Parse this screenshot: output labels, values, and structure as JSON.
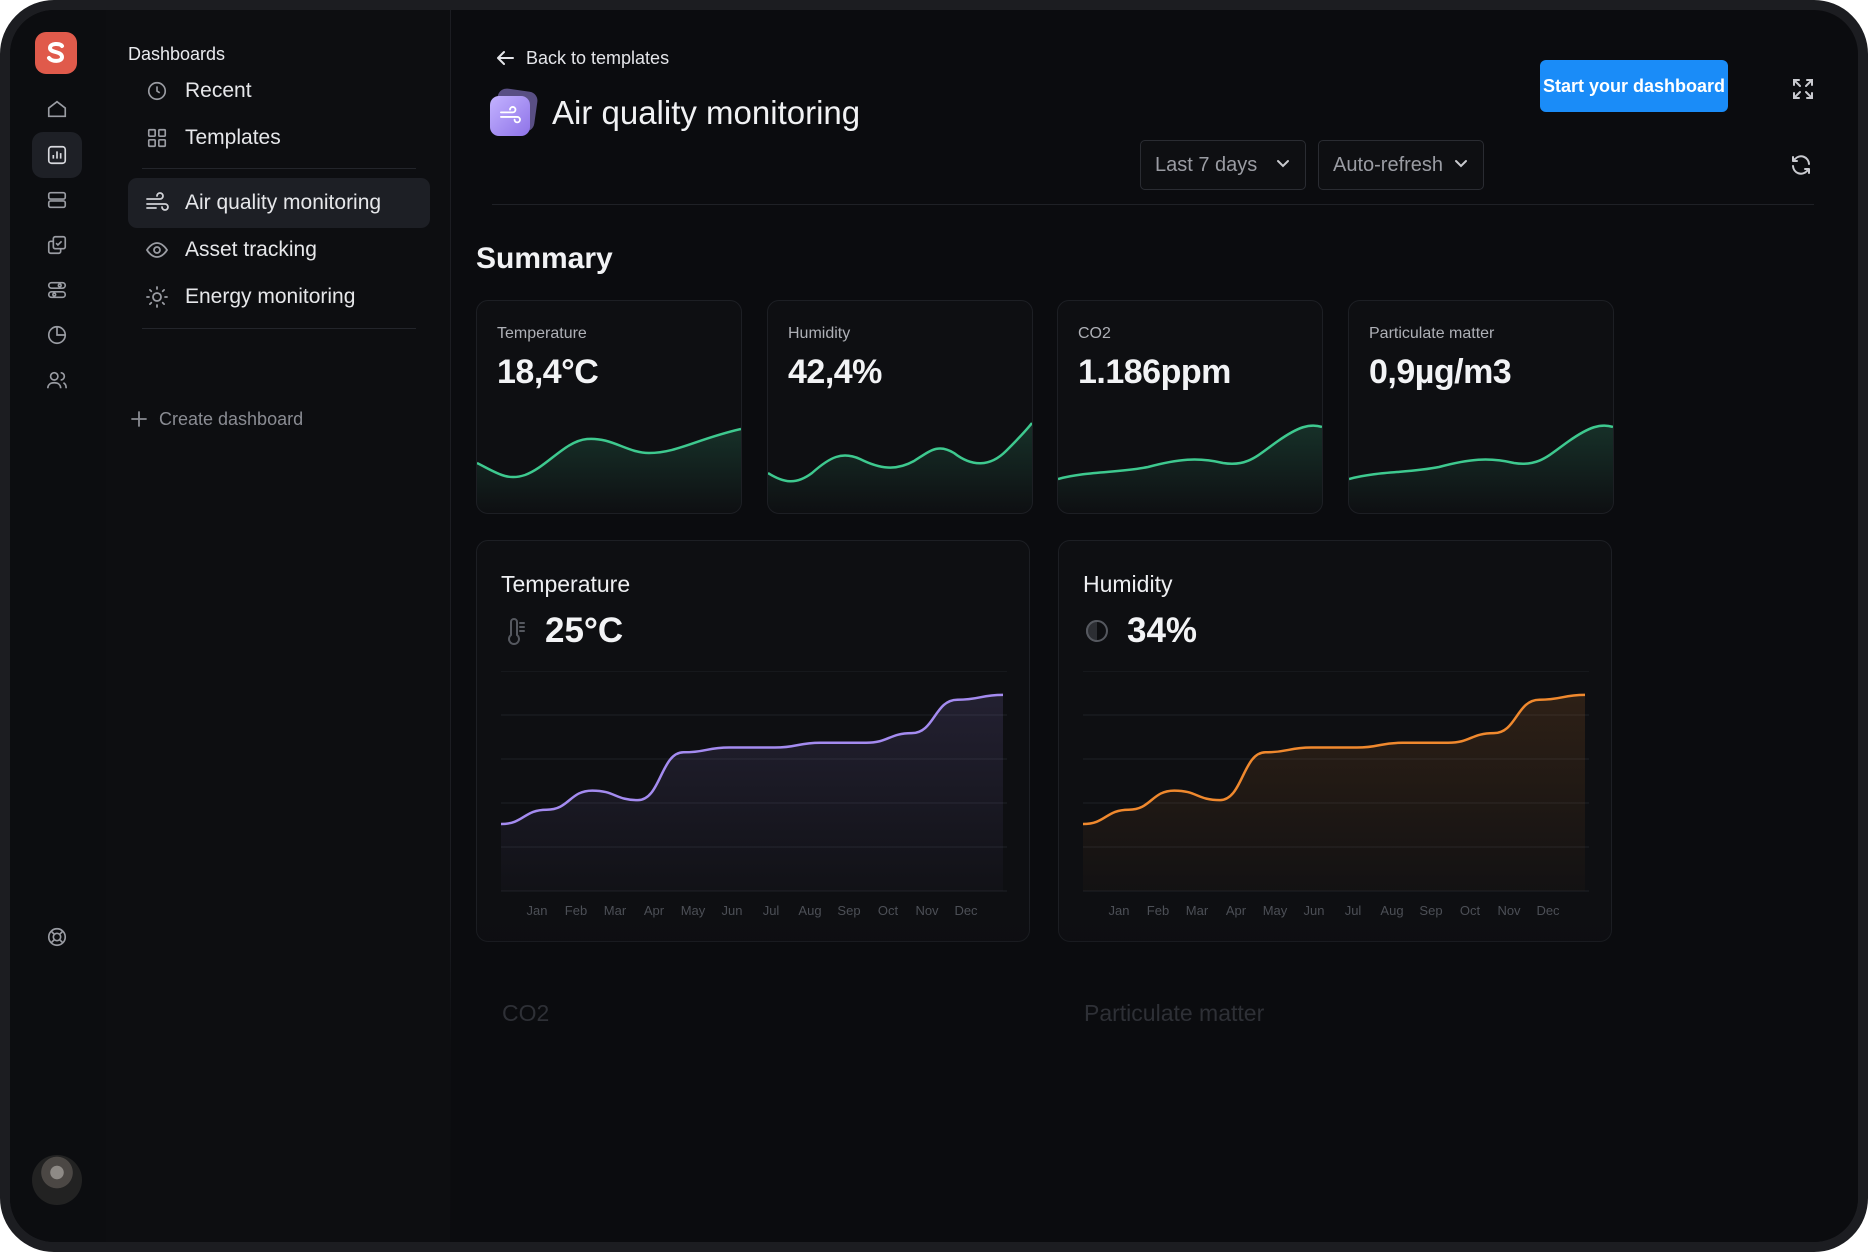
{
  "sidebar": {
    "title": "Dashboards",
    "items": [
      {
        "label": "Recent",
        "icon": "clock-icon"
      },
      {
        "label": "Templates",
        "icon": "grid-icon"
      }
    ],
    "templates": [
      {
        "label": "Air quality monitoring",
        "icon": "wind-icon",
        "active": true
      },
      {
        "label": "Asset tracking",
        "icon": "eye-icon",
        "active": false
      },
      {
        "label": "Energy monitoring",
        "icon": "sun-icon",
        "active": false
      }
    ],
    "create_label": "Create dashboard"
  },
  "rail": {
    "icons": [
      "home-icon",
      "chart-icon",
      "database-icon",
      "copy-icon",
      "components-icon",
      "pie-chart-icon",
      "users-icon",
      "help-icon"
    ],
    "active": "chart-icon"
  },
  "header": {
    "back_label": "Back to templates",
    "title": "Air quality monitoring",
    "cta_label": "Start your dashboard",
    "range_select": "Last 7 days",
    "refresh_select": "Auto-refresh"
  },
  "summary": {
    "title": "Summary",
    "cards": [
      {
        "label": "Temperature",
        "value": "18,4°C"
      },
      {
        "label": "Humidity",
        "value": "42,4%"
      },
      {
        "label": "CO2",
        "value": "1.186ppm"
      },
      {
        "label": "Particulate matter",
        "value": "0,9µg/m3"
      }
    ]
  },
  "panels": [
    {
      "title": "Temperature",
      "value": "25°C",
      "icon": "thermometer-icon",
      "color": "#a48bf0"
    },
    {
      "title": "Humidity",
      "value": "34%",
      "icon": "humidity-icon",
      "color": "#f0892e"
    }
  ],
  "lower_panels": [
    "CO2",
    "Particulate matter"
  ],
  "chart_data": [
    {
      "type": "line",
      "title": "Temperature",
      "categories": [
        "Jan",
        "Feb",
        "Mar",
        "Apr",
        "May",
        "Jun",
        "Jul",
        "Aug",
        "Sep",
        "Oct",
        "Nov",
        "Dec"
      ],
      "values": [
        14,
        17,
        21,
        19,
        29,
        30,
        30,
        31,
        31,
        33,
        40,
        41
      ],
      "ylim": [
        0,
        46
      ]
    },
    {
      "type": "line",
      "title": "Humidity",
      "categories": [
        "Jan",
        "Feb",
        "Mar",
        "Apr",
        "May",
        "Jun",
        "Jul",
        "Aug",
        "Sep",
        "Oct",
        "Nov",
        "Dec"
      ],
      "values": [
        14,
        17,
        21,
        19,
        29,
        30,
        30,
        31,
        31,
        33,
        40,
        41
      ],
      "ylim": [
        0,
        46
      ]
    }
  ],
  "colors": {
    "accent": "#1a8cf8",
    "spark": "#3ec98f",
    "temperature": "#a48bf0",
    "humidity": "#f0892e"
  }
}
